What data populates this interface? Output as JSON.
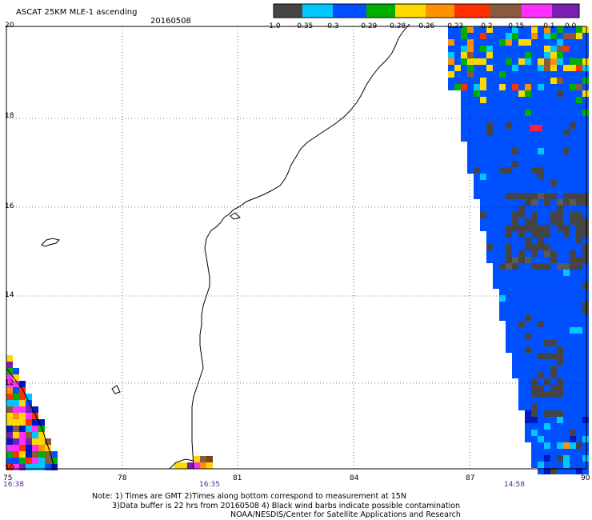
{
  "header": {
    "product": "ASCAT 25KM MLE-1 ascending",
    "date": "20160508"
  },
  "colorbar": {
    "labels": [
      "-1.0",
      "-0.35",
      "-0.3",
      "-0.29",
      "-0.28",
      "-0.26",
      "-0.23",
      "-0.2",
      "-0.15",
      "-0.1",
      "0.0"
    ],
    "colors": [
      "#454545",
      "#00c8ff",
      "#0050ff",
      "#00b000",
      "#ffd800",
      "#ff9000",
      "#ff3000",
      "#8a5a3c",
      "#ff30ff",
      "#7a20b0"
    ]
  },
  "axes": {
    "lat_labels": [
      "20",
      "18",
      "16",
      "14",
      "12",
      "10"
    ],
    "lon_labels": [
      "75",
      "78",
      "81",
      "84",
      "87",
      "90"
    ],
    "time_labels": [
      "16:38",
      "16:35",
      "14:58"
    ]
  },
  "notes": {
    "line1": "Note: 1) Times are GMT 2)Times along bottom correspond to measurement at 15N",
    "line2": "3)Data buffer is 22 hrs from 20160508 4) Black wind barbs indicate possible contamination",
    "line3": "NOAA/NESDIS/Center for Satellite Applications and Research"
  }
}
